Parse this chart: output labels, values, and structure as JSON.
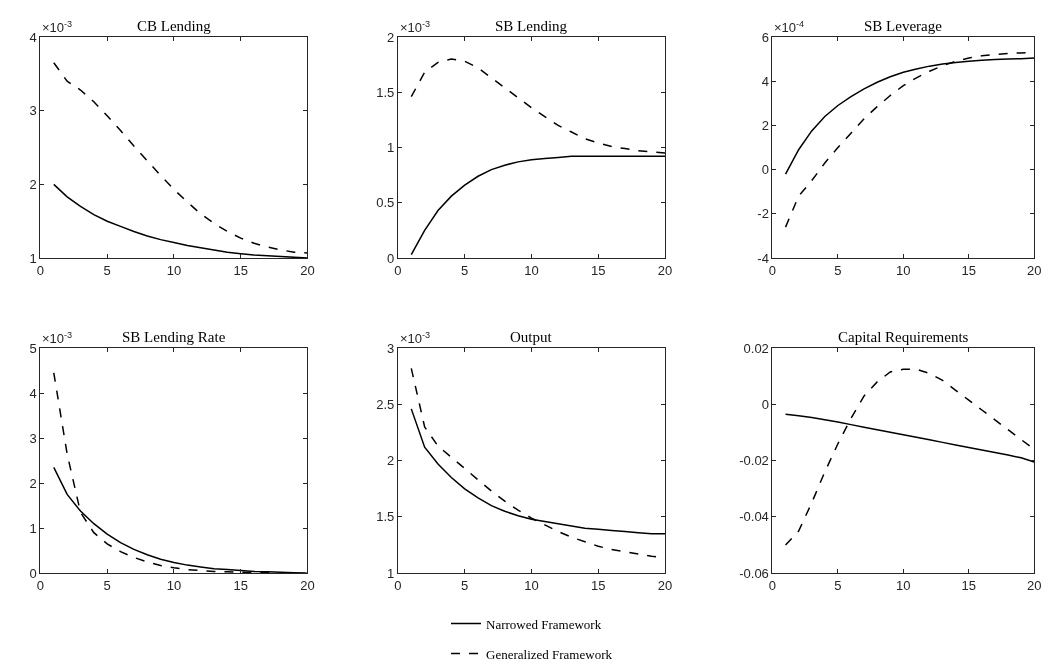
{
  "chart_data": [
    {
      "type": "line",
      "title": "CB Lending",
      "annotations": [
        "×10$^{-3}$"
      ],
      "x": [
        1,
        2,
        3,
        4,
        5,
        6,
        7,
        8,
        9,
        10,
        11,
        12,
        13,
        14,
        15,
        16,
        17,
        18,
        19,
        20
      ],
      "xlim": [
        0,
        20
      ],
      "xticks": [
        0,
        5,
        10,
        15,
        20
      ],
      "ylim": [
        1,
        4
      ],
      "yticks": [
        1,
        2,
        3,
        4
      ],
      "legend": "bottom",
      "series": [
        {
          "name": "Narrowed Framework",
          "color": "#000000",
          "line_style": "solid",
          "values": [
            2.0,
            1.83,
            1.7,
            1.59,
            1.5,
            1.43,
            1.36,
            1.3,
            1.25,
            1.21,
            1.17,
            1.14,
            1.11,
            1.08,
            1.06,
            1.04,
            1.03,
            1.02,
            1.01,
            1.0
          ]
        },
        {
          "name": "Generalized Framework",
          "color": "#000000",
          "line_style": "dashed",
          "values": [
            3.65,
            3.4,
            3.28,
            3.12,
            2.93,
            2.73,
            2.52,
            2.32,
            2.12,
            1.93,
            1.76,
            1.6,
            1.47,
            1.36,
            1.27,
            1.2,
            1.15,
            1.11,
            1.08,
            1.07
          ]
        }
      ]
    },
    {
      "type": "line",
      "title": "SB Lending",
      "annotations": [
        "×10$^{-3}$"
      ],
      "x": [
        1,
        2,
        3,
        4,
        5,
        6,
        7,
        8,
        9,
        10,
        11,
        12,
        13,
        14,
        15,
        16,
        17,
        18,
        19,
        20
      ],
      "xlim": [
        0,
        20
      ],
      "xticks": [
        0,
        5,
        10,
        15,
        20
      ],
      "ylim": [
        0,
        2
      ],
      "yticks": [
        0,
        0.5,
        1,
        1.5,
        2
      ],
      "legend": "bottom",
      "series": [
        {
          "name": "Narrowed Framework",
          "color": "#000000",
          "line_style": "solid",
          "values": [
            0.03,
            0.25,
            0.43,
            0.56,
            0.66,
            0.74,
            0.8,
            0.84,
            0.87,
            0.89,
            0.9,
            0.91,
            0.92,
            0.92,
            0.92,
            0.92,
            0.92,
            0.92,
            0.92,
            0.92
          ]
        },
        {
          "name": "Generalized Framework",
          "color": "#000000",
          "line_style": "dashed",
          "values": [
            1.46,
            1.68,
            1.77,
            1.8,
            1.78,
            1.72,
            1.63,
            1.54,
            1.45,
            1.36,
            1.28,
            1.2,
            1.14,
            1.08,
            1.04,
            1.01,
            0.99,
            0.97,
            0.96,
            0.95
          ]
        }
      ]
    },
    {
      "type": "line",
      "title": "SB Leverage",
      "annotations": [
        "×10$^{-4}$"
      ],
      "x": [
        1,
        2,
        3,
        4,
        5,
        6,
        7,
        8,
        9,
        10,
        11,
        12,
        13,
        14,
        15,
        16,
        17,
        18,
        19,
        20
      ],
      "xlim": [
        0,
        20
      ],
      "xticks": [
        0,
        5,
        10,
        15,
        20
      ],
      "ylim": [
        -4,
        6
      ],
      "yticks": [
        -4,
        -2,
        0,
        2,
        4,
        6
      ],
      "legend": "bottom",
      "series": [
        {
          "name": "Narrowed Framework",
          "color": "#000000",
          "line_style": "solid",
          "values": [
            -0.2,
            0.9,
            1.75,
            2.4,
            2.9,
            3.3,
            3.65,
            3.95,
            4.2,
            4.4,
            4.55,
            4.68,
            4.78,
            4.85,
            4.9,
            4.95,
            4.98,
            5.0,
            5.02,
            5.05
          ]
        },
        {
          "name": "Generalized Framework",
          "color": "#000000",
          "line_style": "dashed",
          "values": [
            -2.6,
            -1.2,
            -0.5,
            0.3,
            1.0,
            1.65,
            2.3,
            2.85,
            3.35,
            3.8,
            4.15,
            4.45,
            4.7,
            4.9,
            5.05,
            5.15,
            5.2,
            5.25,
            5.28,
            5.3
          ]
        }
      ]
    },
    {
      "type": "line",
      "title": "SB Lending Rate",
      "annotations": [
        "×10$^{-3}$"
      ],
      "x": [
        1,
        2,
        3,
        4,
        5,
        6,
        7,
        8,
        9,
        10,
        11,
        12,
        13,
        14,
        15,
        16,
        17,
        18,
        19,
        20
      ],
      "xlim": [
        0,
        20
      ],
      "xticks": [
        0,
        5,
        10,
        15,
        20
      ],
      "ylim": [
        0,
        5
      ],
      "yticks": [
        0,
        1,
        2,
        3,
        4,
        5
      ],
      "legend": "bottom",
      "series": [
        {
          "name": "Narrowed Framework",
          "color": "#000000",
          "line_style": "solid",
          "values": [
            2.35,
            1.75,
            1.38,
            1.1,
            0.87,
            0.68,
            0.53,
            0.41,
            0.31,
            0.24,
            0.18,
            0.14,
            0.1,
            0.08,
            0.06,
            0.04,
            0.03,
            0.02,
            0.01,
            0.0
          ]
        },
        {
          "name": "Generalized Framework",
          "color": "#000000",
          "line_style": "dashed",
          "values": [
            4.45,
            2.65,
            1.35,
            0.9,
            0.65,
            0.48,
            0.35,
            0.25,
            0.17,
            0.12,
            0.08,
            0.06,
            0.04,
            0.03,
            0.02,
            0.01,
            0.01,
            0.0,
            0.0,
            0.0
          ]
        }
      ]
    },
    {
      "type": "line",
      "title": "Output",
      "annotations": [
        "×10$^{-3}$"
      ],
      "x": [
        1,
        2,
        3,
        4,
        5,
        6,
        7,
        8,
        9,
        10,
        11,
        12,
        13,
        14,
        15,
        16,
        17,
        18,
        19,
        20
      ],
      "xlim": [
        0,
        20
      ],
      "xticks": [
        0,
        5,
        10,
        15,
        20
      ],
      "ylim": [
        1,
        3
      ],
      "yticks": [
        1,
        1.5,
        2,
        2.5,
        3
      ],
      "legend": "bottom",
      "series": [
        {
          "name": "Narrowed Framework",
          "color": "#000000",
          "line_style": "solid",
          "values": [
            2.46,
            2.12,
            1.97,
            1.85,
            1.75,
            1.67,
            1.6,
            1.55,
            1.51,
            1.48,
            1.46,
            1.44,
            1.42,
            1.4,
            1.39,
            1.38,
            1.37,
            1.36,
            1.35,
            1.35
          ]
        },
        {
          "name": "Generalized Framework",
          "color": "#000000",
          "line_style": "dashed",
          "values": [
            2.82,
            2.3,
            2.13,
            2.03,
            1.93,
            1.83,
            1.73,
            1.64,
            1.56,
            1.49,
            1.43,
            1.37,
            1.32,
            1.28,
            1.24,
            1.21,
            1.19,
            1.17,
            1.15,
            1.14
          ]
        }
      ]
    },
    {
      "type": "line",
      "title": "Capital Requirements",
      "x": [
        1,
        2,
        3,
        4,
        5,
        6,
        7,
        8,
        9,
        10,
        11,
        12,
        13,
        14,
        15,
        16,
        17,
        18,
        19,
        20
      ],
      "xlim": [
        0,
        20
      ],
      "xticks": [
        0,
        5,
        10,
        15,
        20
      ],
      "ylim": [
        -0.06,
        0.02
      ],
      "yticks": [
        -0.06,
        -0.04,
        -0.02,
        {
          "value": 0,
          "label": "0"
        },
        0.02
      ],
      "legend": "bottom",
      "series": [
        {
          "name": "Narrowed Framework",
          "color": "#000000",
          "line_style": "solid",
          "values": [
            -0.0035,
            -0.004,
            -0.0047,
            -0.0055,
            -0.0063,
            -0.0072,
            -0.0081,
            -0.009,
            -0.0099,
            -0.0108,
            -0.0117,
            -0.0126,
            -0.0135,
            -0.0144,
            -0.0153,
            -0.0162,
            -0.0171,
            -0.018,
            -0.019,
            -0.0205
          ]
        },
        {
          "name": "Generalized Framework",
          "color": "#000000",
          "line_style": "dashed",
          "values": [
            -0.05,
            -0.045,
            -0.035,
            -0.024,
            -0.014,
            -0.005,
            0.003,
            0.008,
            0.0115,
            0.0125,
            0.0125,
            0.011,
            0.0085,
            0.005,
            0.0015,
            -0.002,
            -0.0055,
            -0.009,
            -0.0125,
            -0.016
          ]
        }
      ]
    }
  ]
}
